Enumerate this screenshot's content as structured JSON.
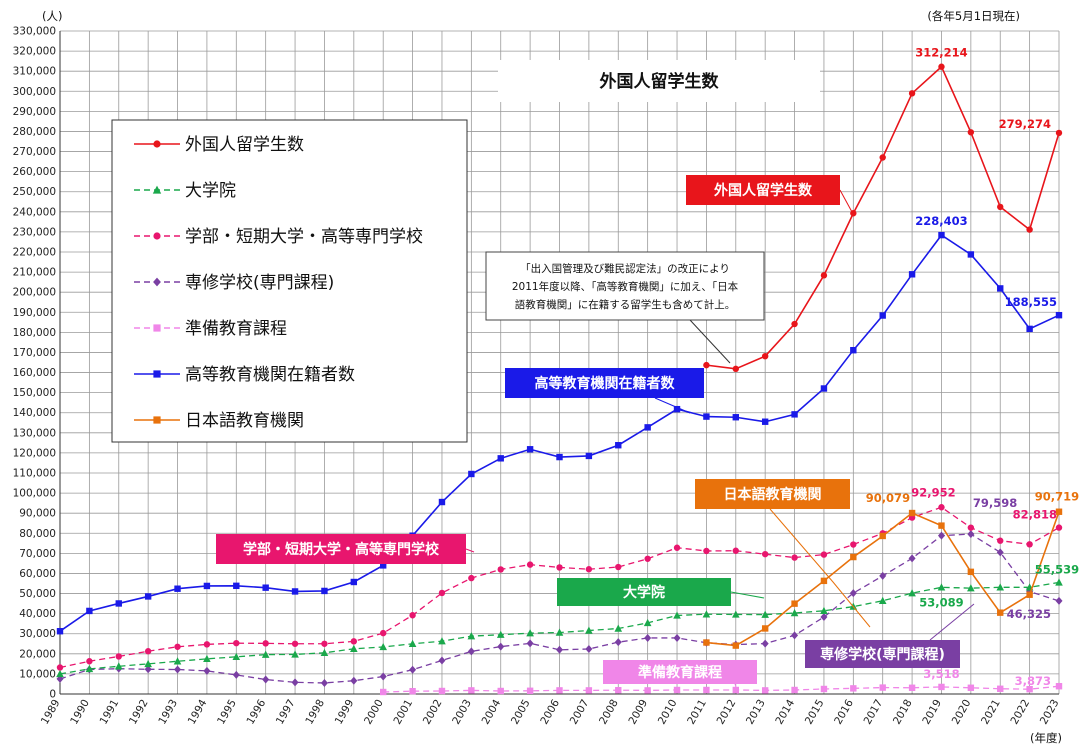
{
  "chart_data": {
    "type": "line",
    "title": "外国人留学生数",
    "unit_label": "(人)",
    "date_note": "(各年5月1日現在)",
    "xlabel": "(年度)",
    "ylim": [
      0,
      330000
    ],
    "ytick_step": 10000,
    "grid": true,
    "legend_position": "top-left",
    "x": [
      "1989",
      "1990",
      "1991",
      "1992",
      "1993",
      "1994",
      "1995",
      "1996",
      "1997",
      "1998",
      "1999",
      "2000",
      "2001",
      "2002",
      "2003",
      "2004",
      "2005",
      "2006",
      "2007",
      "2008",
      "2009",
      "2010",
      "2011",
      "2012",
      "2013",
      "2014",
      "2015",
      "2016",
      "2017",
      "2018",
      "2019",
      "2020",
      "2021",
      "2022",
      "2023"
    ],
    "series": [
      {
        "key": "total",
        "name": "外国人留学生数",
        "color": "#e8151b",
        "marker": "circle",
        "dash": "",
        "values": [
          null,
          null,
          null,
          null,
          null,
          null,
          null,
          null,
          null,
          null,
          null,
          null,
          null,
          null,
          null,
          null,
          null,
          null,
          null,
          null,
          null,
          null,
          163697,
          161848,
          168145,
          184155,
          208379,
          239287,
          267042,
          298980,
          312214,
          279597,
          242444,
          231146,
          279274
        ]
      },
      {
        "key": "grad",
        "name": "大学院",
        "color": "#1aa84b",
        "marker": "triangle",
        "dash": "6,4",
        "values": [
          10000,
          12500,
          13800,
          15000,
          16300,
          17500,
          18500,
          19600,
          19700,
          20500,
          22500,
          23400,
          25000,
          26300,
          28800,
          29500,
          30300,
          30600,
          31600,
          32600,
          35400,
          39100,
          39700,
          39600,
          39500,
          40300,
          41400,
          43500,
          46400,
          50200,
          53089,
          52700,
          53100,
          53100,
          55539
        ]
      },
      {
        "key": "undergrad",
        "name": "学部・短期大学・高等専門学校",
        "color": "#e8166e",
        "marker": "circle",
        "dash": "6,4",
        "values": [
          13200,
          16300,
          18700,
          21300,
          23500,
          24700,
          25300,
          25200,
          25000,
          25000,
          26200,
          30300,
          39200,
          50300,
          57700,
          62000,
          64400,
          63000,
          62100,
          63200,
          67300,
          72800,
          71200,
          71300,
          69600,
          67900,
          69400,
          74400,
          80000,
          87800,
          92952,
          82800,
          76300,
          74500,
          82818
        ]
      },
      {
        "key": "vocational",
        "name": "専修学校(専門課程)",
        "color": "#7a3fa3",
        "marker": "diamond",
        "dash": "6,4",
        "values": [
          7500,
          12200,
          12600,
          12300,
          12200,
          11500,
          9500,
          7200,
          5800,
          5500,
          6600,
          8700,
          12100,
          16700,
          21200,
          23600,
          25200,
          22000,
          22400,
          25800,
          27900,
          27900,
          25500,
          24600,
          25100,
          29200,
          38300,
          50200,
          58800,
          67500,
          78800,
          79598,
          70500,
          51000,
          46325
        ]
      },
      {
        "key": "prep",
        "name": "準備教育課程",
        "color": "#f086e8",
        "marker": "square",
        "dash": "6,4",
        "values": [
          null,
          null,
          null,
          null,
          null,
          null,
          null,
          null,
          null,
          null,
          null,
          1000,
          1400,
          1500,
          1800,
          1500,
          1600,
          1800,
          1800,
          1900,
          1800,
          2000,
          2000,
          2000,
          1800,
          2000,
          2500,
          2800,
          3200,
          3100,
          3518,
          3100,
          2600,
          2400,
          3873
        ]
      },
      {
        "key": "higher",
        "name": "高等教育機関在籍者数",
        "color": "#1a1ae8",
        "marker": "square",
        "dash": "",
        "values": [
          31251,
          41347,
          45066,
          48561,
          52405,
          53787,
          53847,
          52921,
          51047,
          51298,
          55755,
          64011,
          78812,
          95550,
          109508,
          117302,
          121812,
          117927,
          118498,
          123829,
          132720,
          141774,
          138075,
          137756,
          135519,
          139185,
          152062,
          171122,
          188384,
          208901,
          228403,
          218783,
          201877,
          181741,
          188555
        ]
      },
      {
        "key": "japanese",
        "name": "日本語教育機関",
        "color": "#e8720c",
        "marker": "square",
        "dash": "",
        "values": [
          null,
          null,
          null,
          null,
          null,
          null,
          null,
          null,
          null,
          null,
          null,
          null,
          null,
          null,
          null,
          null,
          null,
          null,
          null,
          null,
          null,
          null,
          25622,
          24092,
          32626,
          44970,
          56317,
          68165,
          78658,
          90079,
          83811,
          60804,
          40480,
          49405,
          90719
        ]
      }
    ],
    "point_labels": [
      {
        "series": "total",
        "x": "2019",
        "text": "312,214"
      },
      {
        "series": "total",
        "x": "2023",
        "text": "279,274"
      },
      {
        "series": "higher",
        "x": "2019",
        "text": "228,403"
      },
      {
        "series": "higher",
        "x": "2023",
        "text": "188,555"
      },
      {
        "series": "japanese",
        "x": "2018",
        "text": "90,079"
      },
      {
        "series": "japanese",
        "x": "2023",
        "text": "90,719"
      },
      {
        "series": "undergrad",
        "x": "2019",
        "text": "92,952"
      },
      {
        "series": "undergrad",
        "x": "2023",
        "text": "82,818"
      },
      {
        "series": "vocational",
        "x": "2020",
        "text": "79,598"
      },
      {
        "series": "vocational",
        "x": "2023",
        "text": "46,325"
      },
      {
        "series": "grad",
        "x": "2019",
        "text": "53,089"
      },
      {
        "series": "grad",
        "x": "2023",
        "text": "55,539"
      },
      {
        "series": "prep",
        "x": "2019",
        "text": "3,518"
      },
      {
        "series": "prep",
        "x": "2023",
        "text": "3,873"
      }
    ],
    "callouts": [
      {
        "key": "total",
        "text": "外国人留学生数",
        "color": "#e8151b"
      },
      {
        "key": "higher",
        "text": "高等教育機関在籍者数",
        "color": "#1a1ae8"
      },
      {
        "key": "japanese",
        "text": "日本語教育機関",
        "color": "#e8720c"
      },
      {
        "key": "undergrad",
        "text": "学部・短期大学・高等専門学校",
        "color": "#e8166e"
      },
      {
        "key": "grad",
        "text": "大学院",
        "color": "#1aa84b"
      },
      {
        "key": "vocational",
        "text": "専修学校(専門課程)",
        "color": "#7a3fa3"
      },
      {
        "key": "prep",
        "text": "準備教育課程",
        "color": "#f086e8"
      }
    ],
    "annotation": [
      "「出入国管理及び難民認定法」の改正により",
      "2011年度以降、「高等教育機関」に加え、「日本",
      "語教育機関」に在籍する留学生も含めて計上。"
    ]
  }
}
